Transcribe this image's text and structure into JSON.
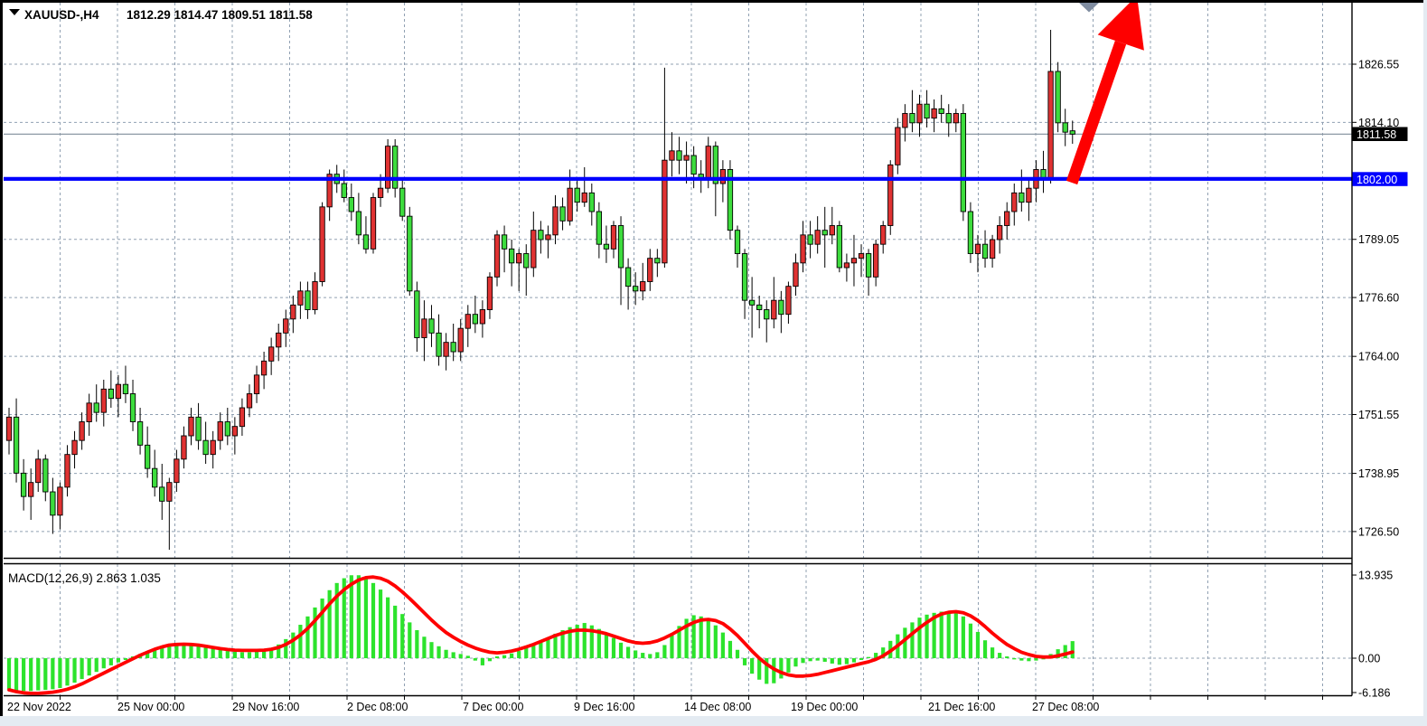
{
  "header": {
    "symbol": "XAUUSD-,H4",
    "ohlc_line": "1812.29 1814.47 1809.51 1811.58"
  },
  "indicator": {
    "label": "MACD(12,26,9) 2.863 1.035"
  },
  "price_axis": {
    "current_price_badge": "1811.58",
    "line_price_badge": "1802.00"
  },
  "colors": {
    "up_candle": "#e03232",
    "down_candle": "#3ddc3d",
    "candle_outline": "#000000",
    "macd_histogram": "#2ce32c",
    "macd_signal": "#ff0000",
    "horizontal_line": "#0000fe",
    "grid": "#90a0b2",
    "current_price_line": "#8c98a4",
    "badge_current_bg": "#000000",
    "badge_line_bg": "#0000fe",
    "trend_arrow": "#ff0000",
    "scroll_marker": "#7f8ca0"
  },
  "chart_data": [
    {
      "type": "candlestick",
      "title": "XAUUSD-,H4",
      "current_ohlc": {
        "open": "1812.29",
        "high": "1814.47",
        "low": "1809.51",
        "close": "1811.58"
      },
      "ylim": [
        1718.0,
        1836.5
      ],
      "grid": "dashed",
      "legend_position": "none",
      "y_ticks": [
        "1826.55",
        "1814.10",
        "1802.00",
        "1789.05",
        "1776.60",
        "1764.00",
        "1751.55",
        "1738.95",
        "1726.50"
      ],
      "x_ticks": [
        {
          "label": "22 Nov 2022",
          "x": 8
        },
        {
          "label": "25 Nov 00:00",
          "x": 130
        },
        {
          "label": "29 Nov 16:00",
          "x": 257
        },
        {
          "label": "2 Dec 08:00",
          "x": 384
        },
        {
          "label": "7 Dec 00:00",
          "x": 512
        },
        {
          "label": "9 Dec 16:00",
          "x": 635
        },
        {
          "label": "14 Dec 08:00",
          "x": 757
        },
        {
          "label": "19 Dec 00:00",
          "x": 875
        },
        {
          "label": "21 Dec 16:00",
          "x": 1027
        },
        {
          "label": "27 Dec 08:00",
          "x": 1142
        }
      ],
      "annotations": {
        "horizontal_line_price": "1802.00",
        "current_price": "1811.58",
        "trend_arrow": "up",
        "scroll_marker": "down-triangle"
      },
      "candles_ohlc": [
        [
          1746,
          1753,
          1743,
          1751
        ],
        [
          1751,
          1755,
          1737,
          1739
        ],
        [
          1739,
          1742,
          1731,
          1734
        ],
        [
          1734,
          1740,
          1729,
          1737
        ],
        [
          1737,
          1744,
          1735,
          1742
        ],
        [
          1742,
          1743,
          1733,
          1735
        ],
        [
          1735,
          1738,
          1726,
          1730
        ],
        [
          1730,
          1737,
          1727,
          1736
        ],
        [
          1736,
          1745,
          1734,
          1743
        ],
        [
          1743,
          1748,
          1740,
          1746
        ],
        [
          1746,
          1752,
          1744,
          1750
        ],
        [
          1750,
          1756,
          1747,
          1754
        ],
        [
          1754,
          1758,
          1750,
          1752
        ],
        [
          1752,
          1759,
          1749,
          1757
        ],
        [
          1757,
          1761,
          1753,
          1755
        ],
        [
          1755,
          1760,
          1751,
          1758
        ],
        [
          1758,
          1762,
          1754,
          1756
        ],
        [
          1756,
          1759,
          1748,
          1750
        ],
        [
          1750,
          1753,
          1743,
          1745
        ],
        [
          1745,
          1749,
          1738,
          1740
        ],
        [
          1740,
          1744,
          1734,
          1736
        ],
        [
          1736,
          1741,
          1729,
          1733
        ],
        [
          1733,
          1738,
          1722.6,
          1737
        ],
        [
          1737,
          1744,
          1735,
          1742
        ],
        [
          1742,
          1749,
          1740,
          1747
        ],
        [
          1747,
          1753,
          1745,
          1751
        ],
        [
          1751,
          1754,
          1744,
          1746
        ],
        [
          1746,
          1750,
          1741,
          1743
        ],
        [
          1743,
          1748,
          1740,
          1746
        ],
        [
          1746,
          1752,
          1744,
          1750
        ],
        [
          1750,
          1753,
          1745,
          1747
        ],
        [
          1747,
          1751,
          1743,
          1749
        ],
        [
          1749,
          1755,
          1747,
          1753
        ],
        [
          1753,
          1758,
          1751,
          1756
        ],
        [
          1756,
          1762,
          1754,
          1760
        ],
        [
          1760,
          1765,
          1757,
          1763
        ],
        [
          1763,
          1768,
          1760,
          1766
        ],
        [
          1766,
          1771,
          1763,
          1769
        ],
        [
          1769,
          1774,
          1766,
          1772
        ],
        [
          1772,
          1777,
          1769,
          1775
        ],
        [
          1775,
          1780,
          1772,
          1778
        ],
        [
          1778,
          1780,
          1772,
          1774
        ],
        [
          1774,
          1782,
          1773,
          1780
        ],
        [
          1780,
          1797,
          1779,
          1796
        ],
        [
          1796,
          1804,
          1793,
          1803
        ],
        [
          1803,
          1805,
          1799,
          1801
        ],
        [
          1801,
          1804,
          1797,
          1798
        ],
        [
          1798,
          1801,
          1793,
          1795
        ],
        [
          1795,
          1799,
          1788,
          1790
        ],
        [
          1790,
          1794,
          1786,
          1787
        ],
        [
          1787,
          1799,
          1786,
          1798
        ],
        [
          1798,
          1803,
          1796,
          1800
        ],
        [
          1800,
          1810.5,
          1799,
          1809
        ],
        [
          1809,
          1810.5,
          1798,
          1800
        ],
        [
          1800,
          1802,
          1793,
          1794
        ],
        [
          1794,
          1796,
          1777,
          1778
        ],
        [
          1778,
          1780,
          1765,
          1768
        ],
        [
          1768,
          1776,
          1763,
          1772
        ],
        [
          1772,
          1775,
          1766,
          1769
        ],
        [
          1769,
          1773,
          1762,
          1764
        ],
        [
          1764,
          1769,
          1761,
          1767
        ],
        [
          1767,
          1771,
          1763,
          1765
        ],
        [
          1765,
          1772,
          1763,
          1770
        ],
        [
          1770,
          1775,
          1766,
          1773
        ],
        [
          1773,
          1777,
          1769,
          1771
        ],
        [
          1771,
          1776,
          1768,
          1774
        ],
        [
          1774,
          1782,
          1772,
          1781
        ],
        [
          1781,
          1791,
          1779,
          1790
        ],
        [
          1790,
          1792,
          1782,
          1787
        ],
        [
          1787,
          1789,
          1779,
          1784
        ],
        [
          1784,
          1787,
          1778,
          1786
        ],
        [
          1786,
          1788,
          1777,
          1783
        ],
        [
          1783,
          1795,
          1781,
          1791
        ],
        [
          1791,
          1793,
          1786,
          1789
        ],
        [
          1789,
          1792,
          1785,
          1790
        ],
        [
          1790,
          1798.5,
          1788,
          1796
        ],
        [
          1796,
          1798,
          1791,
          1793
        ],
        [
          1793,
          1804,
          1792,
          1800
        ],
        [
          1800,
          1802,
          1795,
          1797
        ],
        [
          1797,
          1804.5,
          1796,
          1799
        ],
        [
          1799,
          1801,
          1792,
          1795
        ],
        [
          1795,
          1797,
          1785,
          1788
        ],
        [
          1788,
          1792,
          1784,
          1787
        ],
        [
          1787,
          1793,
          1785,
          1792
        ],
        [
          1792,
          1794,
          1775,
          1783
        ],
        [
          1783,
          1785,
          1774,
          1779
        ],
        [
          1779,
          1782,
          1775,
          1778
        ],
        [
          1778,
          1784,
          1776,
          1780
        ],
        [
          1780,
          1787,
          1778,
          1785
        ],
        [
          1785,
          1787,
          1781,
          1784
        ],
        [
          1784,
          1825.8,
          1783,
          1806
        ],
        [
          1806,
          1812,
          1802.5,
          1808
        ],
        [
          1808,
          1811,
          1803,
          1806
        ],
        [
          1806,
          1810,
          1801,
          1807
        ],
        [
          1807,
          1809,
          1800,
          1803
        ],
        [
          1803,
          1806,
          1799,
          1802
        ],
        [
          1802,
          1811,
          1800,
          1809
        ],
        [
          1809,
          1810,
          1794,
          1801
        ],
        [
          1801,
          1806,
          1797,
          1804
        ],
        [
          1804,
          1806,
          1789,
          1791
        ],
        [
          1791,
          1792,
          1783,
          1786
        ],
        [
          1786,
          1787,
          1772,
          1776
        ],
        [
          1776,
          1781,
          1768,
          1775
        ],
        [
          1775,
          1777,
          1770,
          1774
        ],
        [
          1774,
          1776,
          1767,
          1772
        ],
        [
          1772,
          1781,
          1770,
          1776
        ],
        [
          1776,
          1778,
          1769,
          1773
        ],
        [
          1773,
          1780,
          1771,
          1779
        ],
        [
          1779,
          1786,
          1777,
          1784
        ],
        [
          1784,
          1793,
          1782,
          1790
        ],
        [
          1790,
          1793,
          1785,
          1788
        ],
        [
          1788,
          1794,
          1786,
          1791
        ],
        [
          1791,
          1796,
          1783,
          1790
        ],
        [
          1790,
          1796,
          1788,
          1792
        ],
        [
          1792,
          1793,
          1782,
          1783
        ],
        [
          1783,
          1786,
          1780,
          1784
        ],
        [
          1784,
          1790,
          1779,
          1785
        ],
        [
          1785,
          1788,
          1781,
          1786
        ],
        [
          1786,
          1787,
          1777,
          1781
        ],
        [
          1781,
          1789,
          1779,
          1788
        ],
        [
          1788,
          1793,
          1786,
          1792
        ],
        [
          1792,
          1806,
          1790,
          1805
        ],
        [
          1805,
          1815,
          1803,
          1813
        ],
        [
          1813,
          1818,
          1810,
          1816
        ],
        [
          1816,
          1821,
          1812,
          1814
        ],
        [
          1814,
          1820,
          1811,
          1818
        ],
        [
          1818,
          1821,
          1813,
          1815
        ],
        [
          1815,
          1819,
          1812,
          1817
        ],
        [
          1817,
          1820,
          1814,
          1816
        ],
        [
          1816,
          1818,
          1811,
          1814
        ],
        [
          1814,
          1817,
          1812,
          1816
        ],
        [
          1816,
          1818,
          1793,
          1795
        ],
        [
          1795,
          1797,
          1784,
          1786
        ],
        [
          1786,
          1790,
          1782,
          1788
        ],
        [
          1788,
          1791,
          1783,
          1785
        ],
        [
          1785,
          1790,
          1783,
          1789
        ],
        [
          1789,
          1794,
          1786,
          1792
        ],
        [
          1792,
          1797,
          1789,
          1795
        ],
        [
          1795,
          1801,
          1792,
          1799
        ],
        [
          1799,
          1804,
          1795,
          1797
        ],
        [
          1797,
          1802,
          1793,
          1800
        ],
        [
          1800,
          1806,
          1797,
          1804
        ],
        [
          1804,
          1808,
          1799,
          1802
        ],
        [
          1802,
          1833.9,
          1801,
          1825
        ],
        [
          1825,
          1827,
          1812,
          1814
        ],
        [
          1814,
          1817,
          1809,
          1812
        ],
        [
          1812.29,
          1814.47,
          1809.51,
          1811.58
        ]
      ]
    },
    {
      "type": "bar",
      "title": "MACD(12,26,9)",
      "current_values": {
        "macd": "2.863",
        "signal": "1.035"
      },
      "y_ticks": [
        "13.935",
        "0.00",
        "-6.186"
      ],
      "ylim": [
        -7.5,
        14.5
      ],
      "histogram": [
        -5.2,
        -5.4,
        -5.5,
        -5.5,
        -5.4,
        -5.3,
        -5.2,
        -5.0,
        -4.6,
        -4.1,
        -3.5,
        -2.9,
        -2.3,
        -1.7,
        -1.2,
        -0.7,
        -0.3,
        0.3,
        0.7,
        1.1,
        1.5,
        1.9,
        2.2,
        2.4,
        2.4,
        2.3,
        2.1,
        1.9,
        1.6,
        1.4,
        1.2,
        1.1,
        1.0,
        1.0,
        1.1,
        1.3,
        1.7,
        2.3,
        3.2,
        4.3,
        5.6,
        7.0,
        8.5,
        10.0,
        11.4,
        12.6,
        13.4,
        13.9,
        13.9,
        13.4,
        12.6,
        11.5,
        10.2,
        8.8,
        7.4,
        6.0,
        4.7,
        3.6,
        2.7,
        2.0,
        1.4,
        1.0,
        0.7,
        0.4,
        -0.4,
        -1.2,
        -0.5,
        0.3,
        0.5,
        0.8,
        1.2,
        1.7,
        2.3,
        2.9,
        3.5,
        4.1,
        4.7,
        5.2,
        5.6,
        5.9,
        5.5,
        4.9,
        4.2,
        3.4,
        2.6,
        1.9,
        1.3,
        0.9,
        0.7,
        1.0,
        2.2,
        3.8,
        5.4,
        6.6,
        7.2,
        7.0,
        6.4,
        5.5,
        4.3,
        2.9,
        1.4,
        -1.2,
        -2.6,
        -3.6,
        -4.3,
        -4.2,
        -3.4,
        -2.4,
        -1.4,
        -0.8,
        -0.5,
        -0.4,
        -0.6,
        -0.9,
        -1.1,
        -1.0,
        -0.7,
        -0.3,
        0.2,
        0.9,
        1.8,
        2.9,
        4.0,
        5.1,
        6.0,
        6.8,
        7.3,
        7.6,
        7.8,
        7.8,
        7.6,
        7.0,
        5.8,
        4.4,
        3.0,
        1.8,
        0.9,
        0.3,
        -0.2,
        -0.4,
        -0.5,
        -0.4,
        -0.2,
        0.7,
        1.5,
        2.2,
        2.863
      ],
      "signal": [
        -5.3,
        -5.6,
        -5.8,
        -5.9,
        -5.9,
        -5.8,
        -5.7,
        -5.5,
        -5.2,
        -4.8,
        -4.3,
        -3.7,
        -3.1,
        -2.5,
        -1.9,
        -1.3,
        -0.7,
        -0.1,
        0.5,
        1.0,
        1.5,
        1.9,
        2.2,
        2.3,
        2.35,
        2.3,
        2.2,
        2.0,
        1.8,
        1.6,
        1.45,
        1.35,
        1.3,
        1.3,
        1.3,
        1.35,
        1.5,
        1.8,
        2.3,
        3.0,
        3.9,
        5.0,
        6.3,
        7.7,
        9.1,
        10.4,
        11.5,
        12.4,
        13.1,
        13.5,
        13.6,
        13.4,
        12.9,
        12.1,
        11.1,
        10.0,
        8.8,
        7.6,
        6.4,
        5.3,
        4.3,
        3.5,
        2.8,
        2.2,
        1.7,
        1.3,
        1.0,
        0.9,
        1.0,
        1.2,
        1.5,
        1.9,
        2.3,
        2.8,
        3.3,
        3.8,
        4.2,
        4.5,
        4.7,
        4.7,
        4.6,
        4.4,
        4.1,
        3.7,
        3.3,
        2.9,
        2.6,
        2.5,
        2.6,
        2.9,
        3.4,
        4.0,
        4.7,
        5.4,
        6.0,
        6.4,
        6.5,
        6.3,
        5.8,
        4.9,
        3.8,
        2.5,
        1.2,
        0.0,
        -1.0,
        -1.8,
        -2.4,
        -2.8,
        -3.0,
        -3.0,
        -2.9,
        -2.7,
        -2.4,
        -2.1,
        -1.8,
        -1.5,
        -1.2,
        -0.9,
        -0.6,
        -0.2,
        0.4,
        1.2,
        2.1,
        3.1,
        4.1,
        5.1,
        6.0,
        6.8,
        7.4,
        7.7,
        7.8,
        7.6,
        7.1,
        6.3,
        5.3,
        4.2,
        3.2,
        2.3,
        1.6,
        1.0,
        0.6,
        0.3,
        0.2,
        0.2,
        0.4,
        0.7,
        1.035
      ]
    }
  ]
}
